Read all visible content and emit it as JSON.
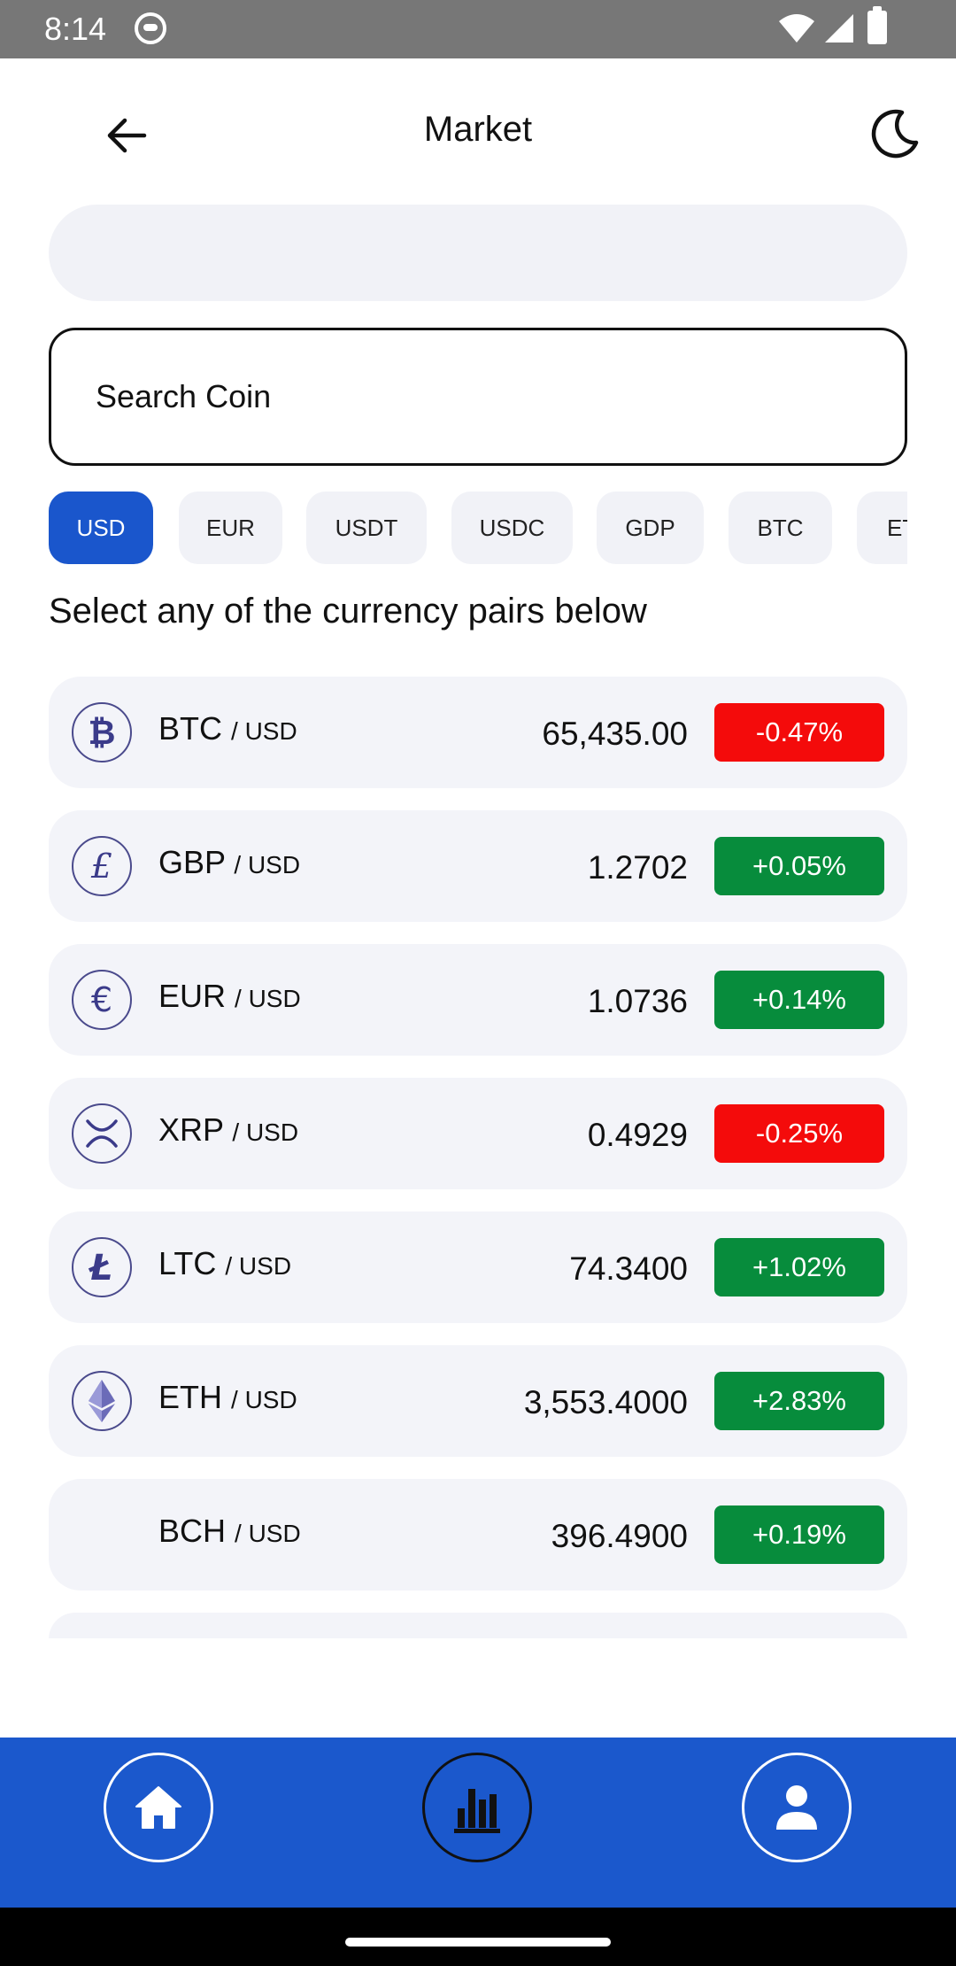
{
  "status_bar": {
    "time": "8:14"
  },
  "header": {
    "title": "Market"
  },
  "search": {
    "placeholder": "Search Coin",
    "value": ""
  },
  "currency_tabs": {
    "selected": "USD",
    "items": [
      "USD",
      "EUR",
      "USDT",
      "USDC",
      "GDP",
      "BTC",
      "ET"
    ]
  },
  "instruction": "Select any of the currency pairs below",
  "pairs": [
    {
      "base": "BTC",
      "quote": "/ USD",
      "price": "65,435.00",
      "change": "-0.47%",
      "direction": "down",
      "icon": "bitcoin-icon"
    },
    {
      "base": "GBP",
      "quote": "/ USD",
      "price": "1.2702",
      "change": "+0.05%",
      "direction": "up",
      "icon": "pound-icon"
    },
    {
      "base": "EUR",
      "quote": "/ USD",
      "price": "1.0736",
      "change": "+0.14%",
      "direction": "up",
      "icon": "euro-icon"
    },
    {
      "base": "XRP",
      "quote": "/ USD",
      "price": "0.4929",
      "change": "-0.25%",
      "direction": "down",
      "icon": "xrp-icon"
    },
    {
      "base": "LTC",
      "quote": "/ USD",
      "price": "74.3400",
      "change": "+1.02%",
      "direction": "up",
      "icon": "litecoin-icon"
    },
    {
      "base": "ETH",
      "quote": "/ USD",
      "price": "3,553.4000",
      "change": "+2.83%",
      "direction": "up",
      "icon": "ethereum-icon"
    },
    {
      "base": "BCH",
      "quote": "/ USD",
      "price": "396.4900",
      "change": "+0.19%",
      "direction": "up",
      "icon": ""
    }
  ],
  "bottom_nav": {
    "items": [
      {
        "icon": "home-icon",
        "active": false
      },
      {
        "icon": "bar-chart-icon",
        "active": true
      },
      {
        "icon": "profile-icon",
        "active": false
      }
    ]
  },
  "colors": {
    "accent": "#1a56cc",
    "nav_background": "#1b58cc",
    "negative": "#f40b0b",
    "positive": "#078c3c",
    "row_background": "#f3f4f9"
  }
}
